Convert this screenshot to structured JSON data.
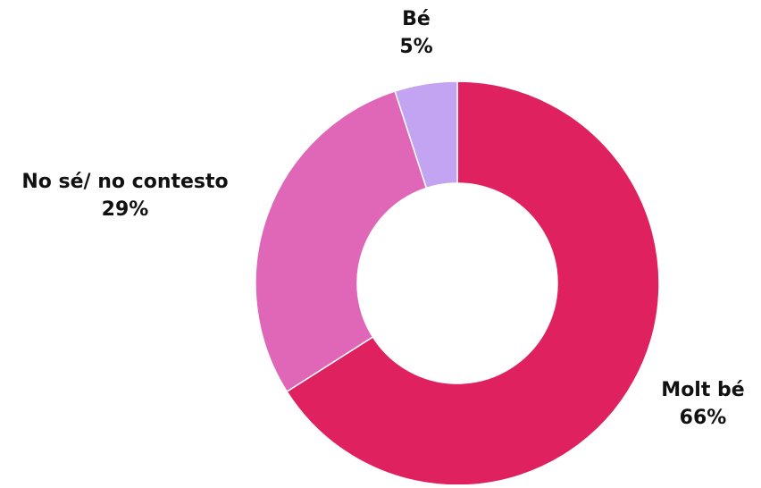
{
  "chart_data": {
    "type": "pie",
    "variant": "donut",
    "title": "",
    "slices": [
      {
        "label": "Molt bé",
        "value": 66,
        "value_label": "66%",
        "color": "#e0215f"
      },
      {
        "label": "No sé/ no contesto",
        "value": 29,
        "value_label": "29%",
        "color": "#e066b8"
      },
      {
        "label": "Bé",
        "value": 5,
        "value_label": "5%",
        "color": "#c3a4f2"
      }
    ],
    "legend": "none",
    "labels": "outside"
  }
}
